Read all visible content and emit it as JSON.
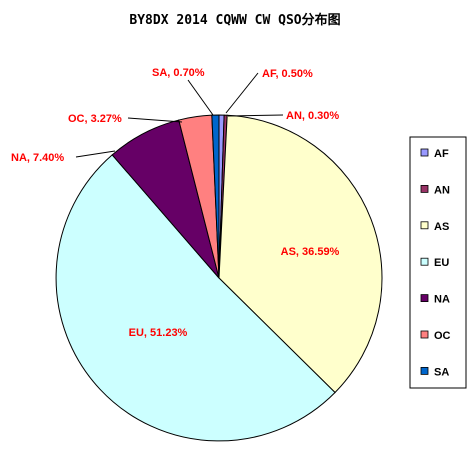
{
  "chart_data": {
    "type": "pie",
    "title": "BY8DX 2014 CQWW CW QSO分布图",
    "start_angle_deg": 0,
    "direction": "clockwise",
    "slices": [
      {
        "label": "AF",
        "value": 0.5,
        "display": "AF, 0.50%",
        "color": "#9999ff"
      },
      {
        "label": "AN",
        "value": 0.3,
        "display": "AN, 0.30%",
        "color": "#993366"
      },
      {
        "label": "AS",
        "value": 36.59,
        "display": "AS, 36.59%",
        "color": "#ffffcc"
      },
      {
        "label": "EU",
        "value": 51.23,
        "display": "EU, 51.23%",
        "color": "#ccffff"
      },
      {
        "label": "NA",
        "value": 7.4,
        "display": "NA, 7.40%",
        "color": "#660066"
      },
      {
        "label": "OC",
        "value": 3.27,
        "display": "OC, 3.27%",
        "color": "#ff8080"
      },
      {
        "label": "SA",
        "value": 0.7,
        "display": "SA, 0.70%",
        "color": "#0066cc"
      }
    ],
    "legend": {
      "placement": "right",
      "entries": [
        "AF",
        "AN",
        "AS",
        "EU",
        "NA",
        "OC",
        "SA"
      ]
    }
  }
}
